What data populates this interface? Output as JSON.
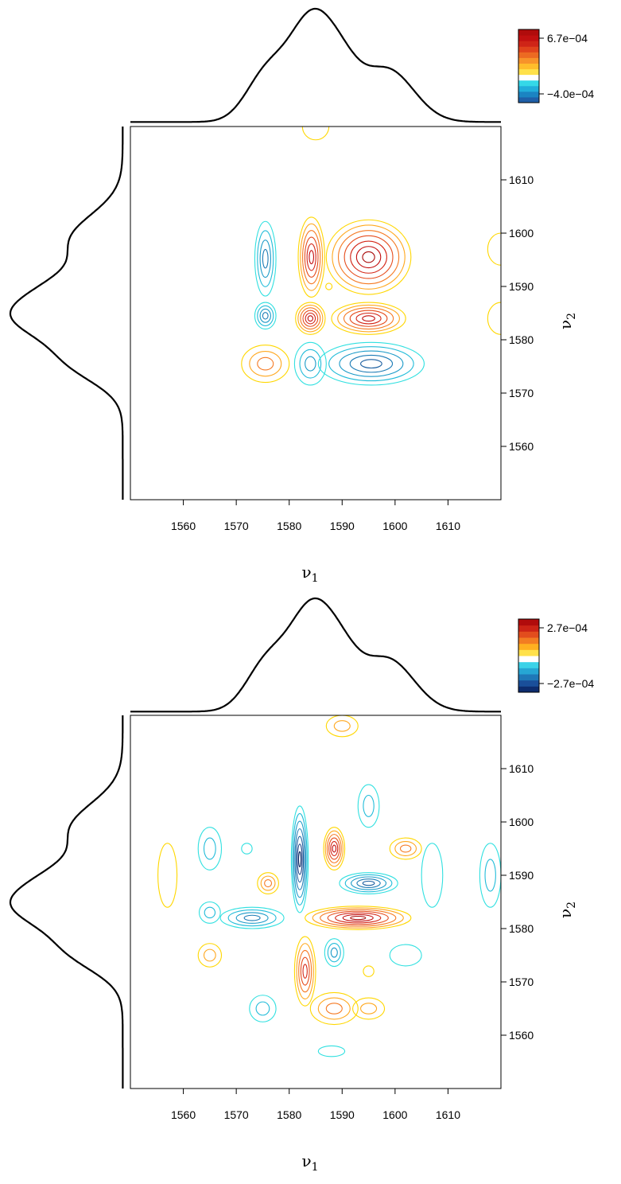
{
  "chart_data": [
    {
      "type": "contour",
      "title": "",
      "xlabel": "ν",
      "xlabel_sub": "1",
      "ylabel": "ν",
      "ylabel_sub": "2",
      "xlim": [
        1550,
        1620
      ],
      "ylim": [
        1550,
        1620
      ],
      "x_ticks": [
        1560,
        1570,
        1580,
        1590,
        1600,
        1610
      ],
      "y_ticks": [
        1560,
        1570,
        1580,
        1590,
        1600,
        1610
      ],
      "colorbar": {
        "max_label": "6.7e−04",
        "min_label": "−4.0e−04",
        "max": 0.00067,
        "min": -0.0004
      },
      "marginal_spectrum_peaks": [
        {
          "center": 1584.5,
          "width": 4.5,
          "height": 0.72
        },
        {
          "center": 1575.5,
          "width": 3.8,
          "height": 0.3
        },
        {
          "center": 1598.5,
          "width": 5.0,
          "height": 0.36
        },
        {
          "center": 1590.5,
          "width": 3.2,
          "height": 0.16
        }
      ],
      "contour_levels": [
        {
          "x": 1575.5,
          "y": 1595.2,
          "rx": 2.0,
          "ry": 7.0,
          "sign": "neg",
          "rings": 4
        },
        {
          "x": 1575.5,
          "y": 1584.5,
          "rx": 2.0,
          "ry": 2.5,
          "sign": "neg",
          "rings": 4
        },
        {
          "x": 1584.2,
          "y": 1595.5,
          "rx": 2.5,
          "ry": 7.5,
          "sign": "pos",
          "rings": 6
        },
        {
          "x": 1595.0,
          "y": 1595.5,
          "rx": 8.0,
          "ry": 7.0,
          "sign": "pos",
          "rings": 7
        },
        {
          "x": 1584.0,
          "y": 1584.0,
          "rx": 2.8,
          "ry": 3.0,
          "sign": "pos",
          "rings": 6
        },
        {
          "x": 1595.0,
          "y": 1584.0,
          "rx": 7.0,
          "ry": 3.0,
          "sign": "pos",
          "rings": 6
        },
        {
          "x": 1575.5,
          "y": 1575.5,
          "rx": 4.5,
          "ry": 3.5,
          "sign": "pos",
          "rings": 3
        },
        {
          "x": 1584.0,
          "y": 1575.5,
          "rx": 3.0,
          "ry": 4.0,
          "sign": "neg",
          "rings": 3
        },
        {
          "x": 1595.5,
          "y": 1575.5,
          "rx": 10.0,
          "ry": 4.0,
          "sign": "neg",
          "rings": 5
        },
        {
          "x": 1587.5,
          "y": 1590.0,
          "rx": 0.6,
          "ry": 0.6,
          "sign": "pos",
          "rings": 1
        },
        {
          "x": 1585.0,
          "y": 1620.0,
          "rx": 2.5,
          "ry": 2.5,
          "sign": "pos",
          "rings": 1
        },
        {
          "x": 1620.0,
          "y": 1597.0,
          "rx": 2.5,
          "ry": 3.0,
          "sign": "pos",
          "rings": 1
        },
        {
          "x": 1620.0,
          "y": 1584.0,
          "rx": 2.5,
          "ry": 3.0,
          "sign": "pos",
          "rings": 1
        }
      ]
    },
    {
      "type": "contour",
      "title": "",
      "xlabel": "ν",
      "xlabel_sub": "1",
      "ylabel": "ν",
      "ylabel_sub": "2",
      "xlim": [
        1550,
        1620
      ],
      "ylim": [
        1550,
        1620
      ],
      "x_ticks": [
        1560,
        1570,
        1580,
        1590,
        1600,
        1610
      ],
      "y_ticks": [
        1560,
        1570,
        1580,
        1590,
        1600,
        1610
      ],
      "colorbar": {
        "max_label": "2.7e−04",
        "min_label": "−2.7e−04",
        "max": 0.00027,
        "min": -0.00027
      },
      "marginal_spectrum_peaks": [
        {
          "center": 1584.5,
          "width": 4.5,
          "height": 0.72
        },
        {
          "center": 1575.5,
          "width": 3.8,
          "height": 0.3
        },
        {
          "center": 1598.5,
          "width": 5.0,
          "height": 0.36
        },
        {
          "center": 1590.5,
          "width": 3.2,
          "height": 0.16
        }
      ],
      "contour_levels": [
        {
          "x": 1582.0,
          "y": 1593.0,
          "rx": 1.6,
          "ry": 10.0,
          "sign": "neg",
          "rings": 7
        },
        {
          "x": 1573.0,
          "y": 1582.0,
          "rx": 6.0,
          "ry": 2.0,
          "sign": "neg",
          "rings": 4
        },
        {
          "x": 1595.0,
          "y": 1588.5,
          "rx": 5.5,
          "ry": 2.0,
          "sign": "neg",
          "rings": 5
        },
        {
          "x": 1588.5,
          "y": 1575.5,
          "rx": 1.8,
          "ry": 2.6,
          "sign": "neg",
          "rings": 3
        },
        {
          "x": 1588.5,
          "y": 1595.0,
          "rx": 2.0,
          "ry": 4.0,
          "sign": "pos",
          "rings": 6
        },
        {
          "x": 1593.0,
          "y": 1582.0,
          "rx": 10.0,
          "ry": 2.2,
          "sign": "pos",
          "rings": 7
        },
        {
          "x": 1583.0,
          "y": 1572.0,
          "rx": 2.0,
          "ry": 6.5,
          "sign": "pos",
          "rings": 5
        },
        {
          "x": 1576.0,
          "y": 1588.5,
          "rx": 2.0,
          "ry": 2.0,
          "sign": "pos",
          "rings": 3
        },
        {
          "x": 1602.0,
          "y": 1595.0,
          "rx": 3.0,
          "ry": 2.0,
          "sign": "pos",
          "rings": 3
        },
        {
          "x": 1565.0,
          "y": 1595.0,
          "rx": 2.2,
          "ry": 4.0,
          "sign": "neg",
          "rings": 2
        },
        {
          "x": 1565.0,
          "y": 1583.0,
          "rx": 2.0,
          "ry": 2.0,
          "sign": "neg",
          "rings": 2
        },
        {
          "x": 1595.0,
          "y": 1603.0,
          "rx": 2.0,
          "ry": 4.0,
          "sign": "neg",
          "rings": 2
        },
        {
          "x": 1575.0,
          "y": 1565.0,
          "rx": 2.5,
          "ry": 2.5,
          "sign": "neg",
          "rings": 2
        },
        {
          "x": 1602.0,
          "y": 1575.0,
          "rx": 3.0,
          "ry": 2.0,
          "sign": "neg",
          "rings": 1
        },
        {
          "x": 1588.5,
          "y": 1565.0,
          "rx": 4.5,
          "ry": 3.0,
          "sign": "pos",
          "rings": 3
        },
        {
          "x": 1595.0,
          "y": 1565.0,
          "rx": 3.0,
          "ry": 2.0,
          "sign": "pos",
          "rings": 2
        },
        {
          "x": 1565.0,
          "y": 1575.0,
          "rx": 2.2,
          "ry": 2.2,
          "sign": "pos",
          "rings": 2
        },
        {
          "x": 1557.0,
          "y": 1590.0,
          "rx": 1.8,
          "ry": 6.0,
          "sign": "pos",
          "rings": 1
        },
        {
          "x": 1607.0,
          "y": 1590.0,
          "rx": 2.0,
          "ry": 6.0,
          "sign": "neg",
          "rings": 1
        },
        {
          "x": 1618.0,
          "y": 1590.0,
          "rx": 2.0,
          "ry": 6.0,
          "sign": "neg",
          "rings": 2
        },
        {
          "x": 1595.0,
          "y": 1572.0,
          "rx": 1.0,
          "ry": 1.0,
          "sign": "pos",
          "rings": 1
        },
        {
          "x": 1572.0,
          "y": 1595.0,
          "rx": 1.0,
          "ry": 1.0,
          "sign": "neg",
          "rings": 1
        },
        {
          "x": 1588.0,
          "y": 1557.0,
          "rx": 2.5,
          "ry": 1.0,
          "sign": "neg",
          "rings": 1
        },
        {
          "x": 1590.0,
          "y": 1618.0,
          "rx": 3.0,
          "ry": 2.0,
          "sign": "pos",
          "rings": 2
        }
      ]
    }
  ]
}
